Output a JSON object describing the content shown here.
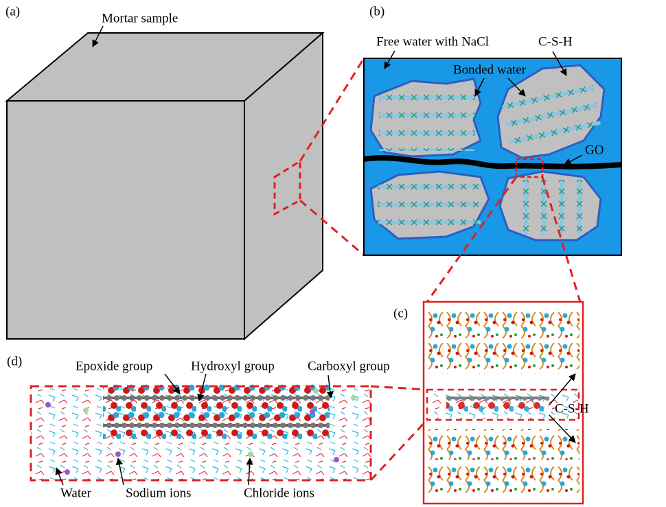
{
  "panels": {
    "a": {
      "label": "(a)",
      "annotation": "Mortar sample"
    },
    "b": {
      "label": "(b)",
      "annotations": [
        "Free water with NaCl",
        "C-S-H",
        "Bonded water",
        "GO"
      ]
    },
    "c": {
      "label": "(c)",
      "annotation": "C-S-H"
    },
    "d": {
      "label": "(d)",
      "annotations": [
        "Epoxide group",
        "Hydroxyl group",
        "Carboxyl group",
        "Water",
        "Sodium ions",
        "Chloride ions"
      ]
    }
  }
}
